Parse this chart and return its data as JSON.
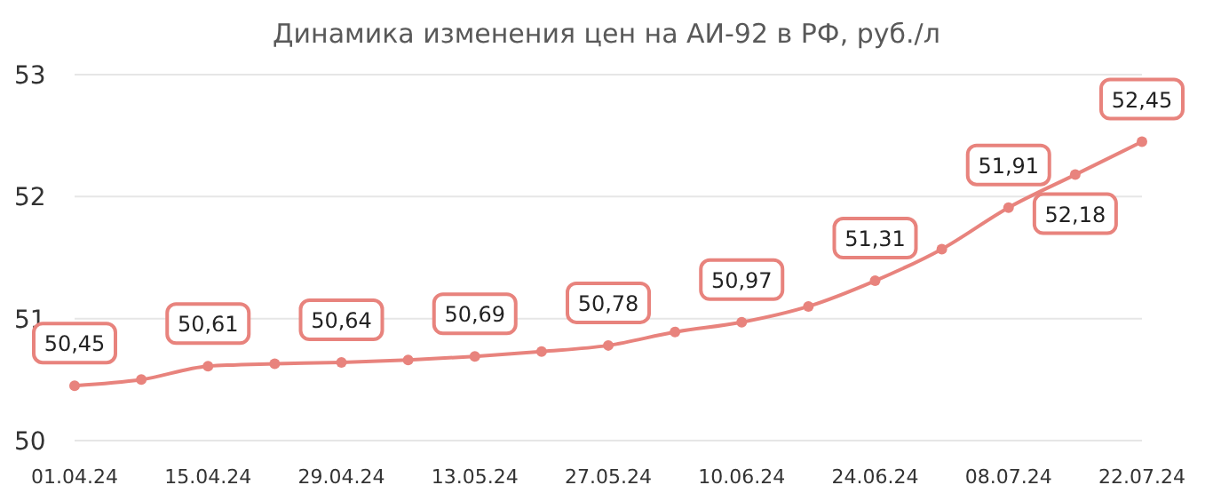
{
  "chart_data": {
    "type": "line",
    "title": "Динамика изменения цен на АИ-92 в РФ, руб./л",
    "categories": [
      "01.04.24",
      null,
      "15.04.24",
      null,
      "29.04.24",
      null,
      "13.05.24",
      null,
      "27.05.24",
      null,
      "10.06.24",
      null,
      "24.06.24",
      null,
      "08.07.24",
      null,
      "22.07.24"
    ],
    "series": [
      {
        "color": "#e8837d",
        "values": [
          50.45,
          50.5,
          50.61,
          50.63,
          50.64,
          50.66,
          50.69,
          50.73,
          50.78,
          50.89,
          50.97,
          51.1,
          51.31,
          51.57,
          51.91,
          52.18,
          52.45
        ],
        "value_labels": [
          "50,45",
          null,
          "50,61",
          null,
          "50,64",
          null,
          "50,69",
          null,
          "50,78",
          null,
          "50,97",
          null,
          "51,31",
          null,
          "51,91",
          "52,18",
          "52,45"
        ]
      }
    ],
    "ylim": [
      50,
      53
    ],
    "yticks": [
      50,
      51,
      52,
      53
    ],
    "grid": "y",
    "marker": "circle",
    "line_style": "solid"
  }
}
